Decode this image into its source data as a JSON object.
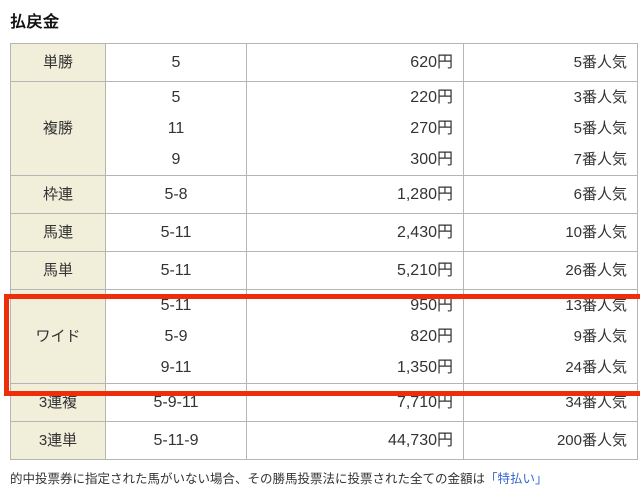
{
  "title": "払戻金",
  "table": {
    "rows": [
      {
        "key": "tansho",
        "type": "単勝",
        "combos": [
          "5"
        ],
        "payouts": [
          "620円"
        ],
        "pops": [
          "5番人気"
        ],
        "highlight": false
      },
      {
        "key": "fukusho",
        "type": "複勝",
        "combos": [
          "5",
          "11",
          "9"
        ],
        "payouts": [
          "220円",
          "270円",
          "300円"
        ],
        "pops": [
          "3番人気",
          "5番人気",
          "7番人気"
        ],
        "highlight": false
      },
      {
        "key": "wakuren",
        "type": "枠連",
        "combos": [
          "5-8"
        ],
        "payouts": [
          "1,280円"
        ],
        "pops": [
          "6番人気"
        ],
        "highlight": false
      },
      {
        "key": "umaren",
        "type": "馬連",
        "combos": [
          "5-11"
        ],
        "payouts": [
          "2,430円"
        ],
        "pops": [
          "10番人気"
        ],
        "highlight": false
      },
      {
        "key": "umatan",
        "type": "馬単",
        "combos": [
          "5-11"
        ],
        "payouts": [
          "5,210円"
        ],
        "pops": [
          "26番人気"
        ],
        "highlight": false
      },
      {
        "key": "wide",
        "type": "ワイド",
        "combos": [
          "5-11",
          "5-9",
          "9-11"
        ],
        "payouts": [
          "950円",
          "820円",
          "1,350円"
        ],
        "pops": [
          "13番人気",
          "9番人気",
          "24番人気"
        ],
        "highlight": true
      },
      {
        "key": "sanrenpuku",
        "type": "3連複",
        "combos": [
          "5-9-11"
        ],
        "payouts": [
          "7,710円"
        ],
        "pops": [
          "34番人気"
        ],
        "highlight": false
      },
      {
        "key": "sanrentan",
        "type": "3連単",
        "combos": [
          "5-11-9"
        ],
        "payouts": [
          "44,730円"
        ],
        "pops": [
          "200番人気"
        ],
        "highlight": false
      }
    ]
  },
  "footnote": {
    "text": "的中投票券に指定された馬がいない場合、その勝馬投票法に投票された全ての金額は",
    "link_text": "「特払い」"
  },
  "colors": {
    "highlight_border": "#ee2d0a",
    "type_cell_background": "#f1eeda",
    "table_border": "#b5b5b5",
    "text": "#333333",
    "link": "#3366cc"
  }
}
